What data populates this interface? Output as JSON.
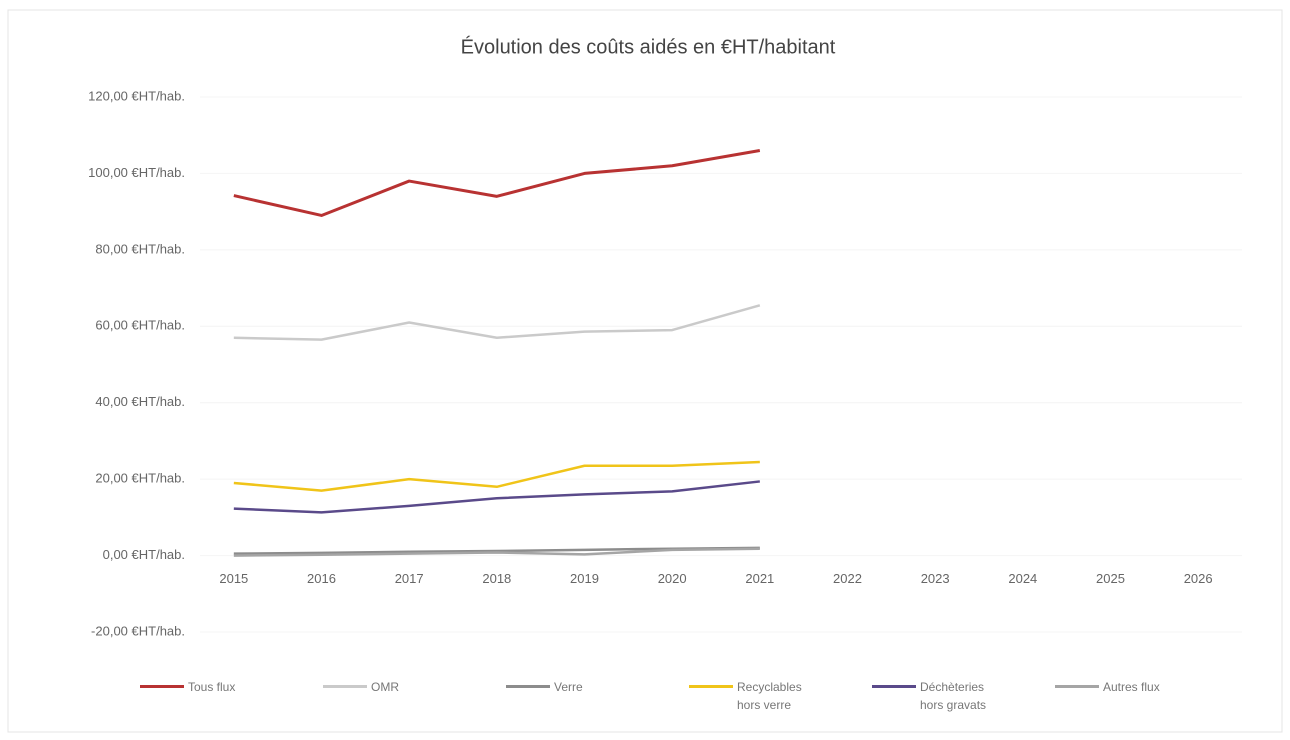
{
  "chart_data": {
    "type": "line",
    "title": "Évolution des coûts aidés en €HT/habitant",
    "categories": [
      "2015",
      "2016",
      "2017",
      "2018",
      "2019",
      "2020",
      "2021",
      "2022",
      "2023",
      "2024",
      "2025",
      "2026"
    ],
    "series": [
      {
        "name": "Tous flux",
        "color": "#b83232",
        "values": [
          94.2,
          89,
          98,
          94,
          100,
          102,
          106,
          null,
          null,
          null,
          null,
          null
        ]
      },
      {
        "name": "OMR",
        "color": "#cacaca",
        "values": [
          57,
          56.5,
          61,
          57,
          58.6,
          59,
          65.5,
          null,
          null,
          null,
          null,
          null
        ]
      },
      {
        "name": "Verre",
        "color": "#8c8c8c",
        "values": [
          0.5,
          0.7,
          1,
          1.2,
          1.5,
          1.8,
          2,
          null,
          null,
          null,
          null,
          null
        ]
      },
      {
        "name": "Recyclables hors verre",
        "color": "#f0c419",
        "values": [
          19,
          17,
          20,
          18,
          23.5,
          23.5,
          24.5,
          null,
          null,
          null,
          null,
          null
        ]
      },
      {
        "name": "Déchèteries hors gravats",
        "color": "#5a4a8a",
        "values": [
          12.3,
          11.3,
          13,
          15,
          16,
          16.8,
          19.4,
          null,
          null,
          null,
          null,
          null
        ]
      },
      {
        "name": "Autres flux",
        "color": "#a5a5a5",
        "values": [
          0,
          0.2,
          0.5,
          0.8,
          0.3,
          1.5,
          1.8,
          null,
          null,
          null,
          null,
          null
        ]
      }
    ],
    "ylim": [
      -20,
      120
    ],
    "yticks": [
      {
        "value": -20,
        "label": "-20,00 €HT/hab."
      },
      {
        "value": 0,
        "label": "0,00 €HT/hab."
      },
      {
        "value": 20,
        "label": "20,00 €HT/hab."
      },
      {
        "value": 40,
        "label": "40,00 €HT/hab."
      },
      {
        "value": 60,
        "label": "60,00 €HT/hab."
      },
      {
        "value": 80,
        "label": "80,00 €HT/hab."
      },
      {
        "value": 100,
        "label": "100,00 €HT/hab."
      },
      {
        "value": 120,
        "label": "120,00 €HT/hab."
      }
    ],
    "grid": true
  }
}
